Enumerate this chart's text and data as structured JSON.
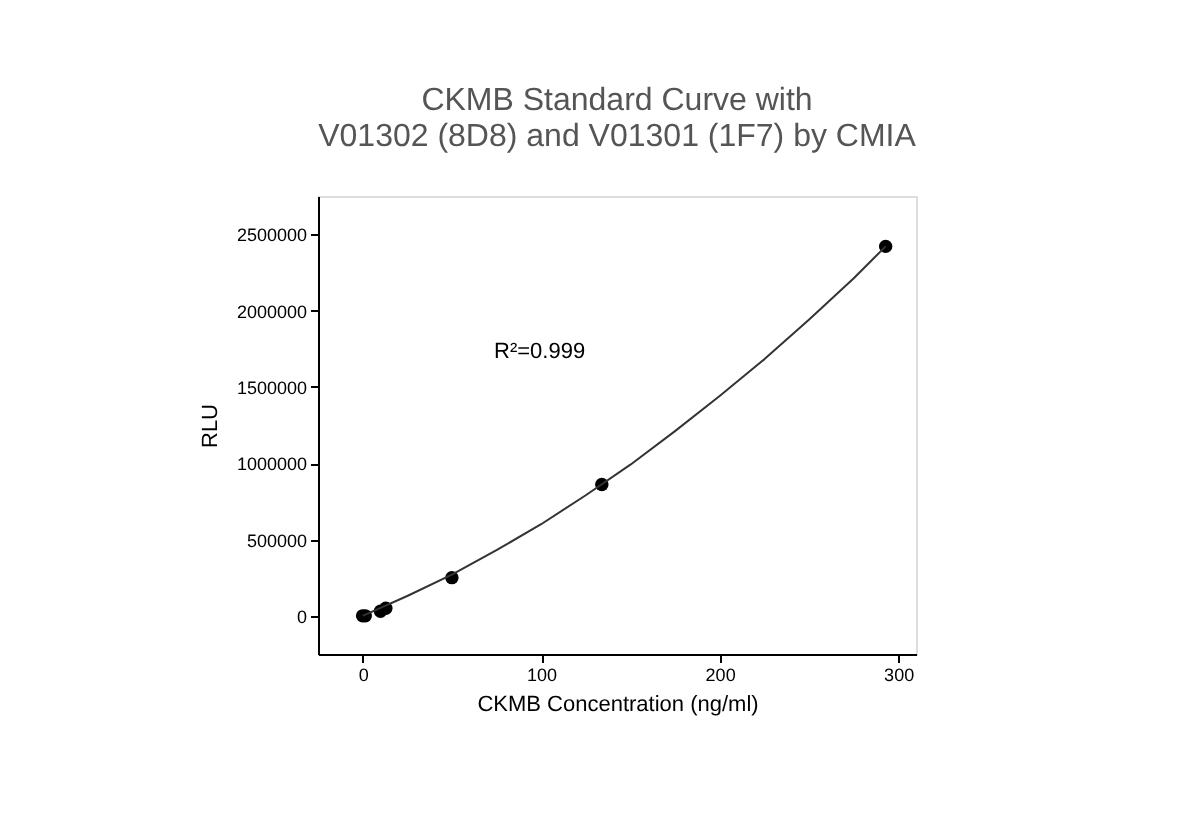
{
  "chart_data": {
    "type": "scatter",
    "title": "CKMB Standard Curve with\nV01302 (8D8) and V01301 (1F7) by CMIA",
    "xlabel": "CKMB Concentration (ng/ml)",
    "ylabel": "RLU",
    "xlim": [
      -25,
      310
    ],
    "xticks": [
      0,
      100,
      200,
      300
    ],
    "ylim": [
      -250000,
      2750000
    ],
    "yticks": [
      0,
      500000,
      1000000,
      1500000,
      2000000,
      2500000
    ],
    "grid": false,
    "annotations": [
      "R²=0.999"
    ],
    "series": [
      {
        "color": "#000000",
        "marker": "circle",
        "x": [
          0,
          1.5,
          10,
          13,
          50,
          134,
          293
        ],
        "values": [
          0,
          0,
          30000,
          50000,
          250000,
          860000,
          2420000
        ]
      },
      {
        "type": "line",
        "color": "#333333",
        "marker": "none",
        "line_style": "solid",
        "x": [
          0,
          25,
          50,
          75,
          100,
          125,
          150,
          175,
          200,
          225,
          250,
          275,
          293
        ],
        "values": [
          0,
          130000,
          270000,
          430000,
          600000,
          790000,
          990000,
          1210000,
          1440000,
          1680000,
          1940000,
          2210000,
          2420000
        ]
      }
    ]
  }
}
